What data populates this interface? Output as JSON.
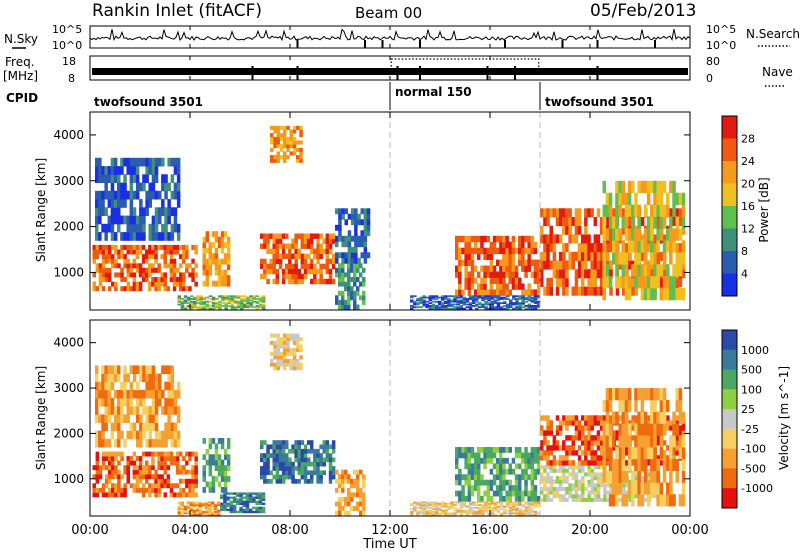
{
  "header": {
    "title": "Rankin Inlet (fitACF)",
    "beam": "Beam 00",
    "date": "05/Feb/2013"
  },
  "left_labels": {
    "nsky": "N.Sky",
    "freq": "Freq.",
    "freq_unit": "[MHz]",
    "cpid": "CPID"
  },
  "right_labels": {
    "nsearch": "N.Search",
    "nave": "Nave"
  },
  "noise_axis": {
    "left_ticks": [
      "10^5",
      "10^0"
    ],
    "right_ticks": [
      "10^5",
      "10^0"
    ]
  },
  "freq_axis": {
    "left_ticks": [
      "18",
      "8"
    ],
    "right_ticks": [
      "80",
      "0"
    ]
  },
  "cpid_segments": [
    {
      "label": "twofsound 3501",
      "start_hr": 0,
      "end_hr": 12
    },
    {
      "label": "normal 150",
      "start_hr": 12,
      "end_hr": 18
    },
    {
      "label": "twofsound 3501",
      "start_hr": 18,
      "end_hr": 24
    }
  ],
  "colors": {
    "power": [
      "#1a2ee6",
      "#2a5cb0",
      "#3f8f7a",
      "#5fbf4f",
      "#f0c020",
      "#f59a1a",
      "#ef5a10",
      "#e31a10"
    ],
    "velocity": [
      "#e61010",
      "#f06a10",
      "#f5a030",
      "#f5d060",
      "#c8c8c8",
      "#8fd040",
      "#4aa860",
      "#3a7a9a",
      "#2a4aa8"
    ]
  },
  "chart_data": [
    {
      "type": "heatmap",
      "name": "Power",
      "xlabel": "",
      "ylabel": "Slant Range [km]",
      "xlim": [
        0,
        24
      ],
      "ylim": [
        180,
        4500
      ],
      "x_ticks": [
        "00:00",
        "04:00",
        "08:00",
        "12:00",
        "16:00",
        "20:00",
        "00:00"
      ],
      "y_ticks": [
        1000,
        2000,
        3000,
        4000
      ],
      "colorbar_label": "Power [dB]",
      "colorbar_ticks": [
        4,
        8,
        12,
        16,
        20,
        24,
        28
      ],
      "regions": [
        {
          "t0": 0.1,
          "t1": 4.3,
          "r0": 600,
          "r1": 1600,
          "level": 6
        },
        {
          "t0": 4.5,
          "t1": 5.6,
          "r0": 700,
          "r1": 1900,
          "level": 5
        },
        {
          "t0": 6.8,
          "t1": 9.8,
          "r0": 750,
          "r1": 1850,
          "level": 6
        },
        {
          "t0": 3.5,
          "t1": 7.0,
          "r0": 200,
          "r1": 500,
          "level": 3
        },
        {
          "t0": 9.8,
          "t1": 11.0,
          "r0": 200,
          "r1": 1200,
          "level": 2
        },
        {
          "t0": 14.6,
          "t1": 18.0,
          "r0": 500,
          "r1": 1800,
          "level": 6
        },
        {
          "t0": 18.0,
          "t1": 23.8,
          "r0": 500,
          "r1": 2400,
          "level": 6
        },
        {
          "t0": 20.5,
          "t1": 23.8,
          "r0": 400,
          "r1": 3000,
          "level": 4
        },
        {
          "t0": 0.2,
          "t1": 3.6,
          "r0": 1700,
          "r1": 3500,
          "level": 1
        },
        {
          "t0": 7.2,
          "t1": 8.5,
          "r0": 3400,
          "r1": 4200,
          "level": 5
        },
        {
          "t0": 12.8,
          "t1": 18.0,
          "r0": 200,
          "r1": 500,
          "level": 1
        },
        {
          "t0": 9.8,
          "t1": 11.2,
          "r0": 1200,
          "r1": 2400,
          "level": 1
        }
      ]
    },
    {
      "type": "heatmap",
      "name": "Velocity",
      "xlabel": "Time UT",
      "ylabel": "Slant Range [km]",
      "xlim": [
        0,
        24
      ],
      "ylim": [
        180,
        4500
      ],
      "x_ticks": [
        "00:00",
        "04:00",
        "08:00",
        "12:00",
        "16:00",
        "20:00",
        "00:00"
      ],
      "y_ticks": [
        1000,
        2000,
        3000,
        4000
      ],
      "colorbar_label": "Velocity [m s^-1]",
      "colorbar_ticks": [
        1000,
        500,
        100,
        25,
        -25,
        -100,
        -500,
        -1000
      ],
      "regions": [
        {
          "t0": 0.1,
          "t1": 4.3,
          "r0": 600,
          "r1": 1600,
          "level": 1
        },
        {
          "t0": 4.5,
          "t1": 5.6,
          "r0": 700,
          "r1": 1900,
          "level": 6
        },
        {
          "t0": 6.8,
          "t1": 9.8,
          "r0": 900,
          "r1": 1850,
          "level": 7
        },
        {
          "t0": 5.2,
          "t1": 7.0,
          "r0": 250,
          "r1": 700,
          "level": 7
        },
        {
          "t0": 3.5,
          "t1": 5.2,
          "r0": 200,
          "r1": 500,
          "level": 2
        },
        {
          "t0": 9.8,
          "t1": 11.0,
          "r0": 200,
          "r1": 1200,
          "level": 2
        },
        {
          "t0": 14.6,
          "t1": 18.0,
          "r0": 500,
          "r1": 1700,
          "level": 6
        },
        {
          "t0": 18.0,
          "t1": 22.8,
          "r0": 500,
          "r1": 1300,
          "level": 4
        },
        {
          "t0": 18.0,
          "t1": 23.8,
          "r0": 1300,
          "r1": 2400,
          "level": 1
        },
        {
          "t0": 20.5,
          "t1": 23.8,
          "r0": 400,
          "r1": 3000,
          "level": 2
        },
        {
          "t0": 0.2,
          "t1": 3.6,
          "r0": 1700,
          "r1": 3500,
          "level": 2
        },
        {
          "t0": 7.2,
          "t1": 8.5,
          "r0": 3400,
          "r1": 4200,
          "level": 3
        },
        {
          "t0": 12.8,
          "t1": 18.0,
          "r0": 200,
          "r1": 500,
          "level": 3
        }
      ]
    }
  ]
}
